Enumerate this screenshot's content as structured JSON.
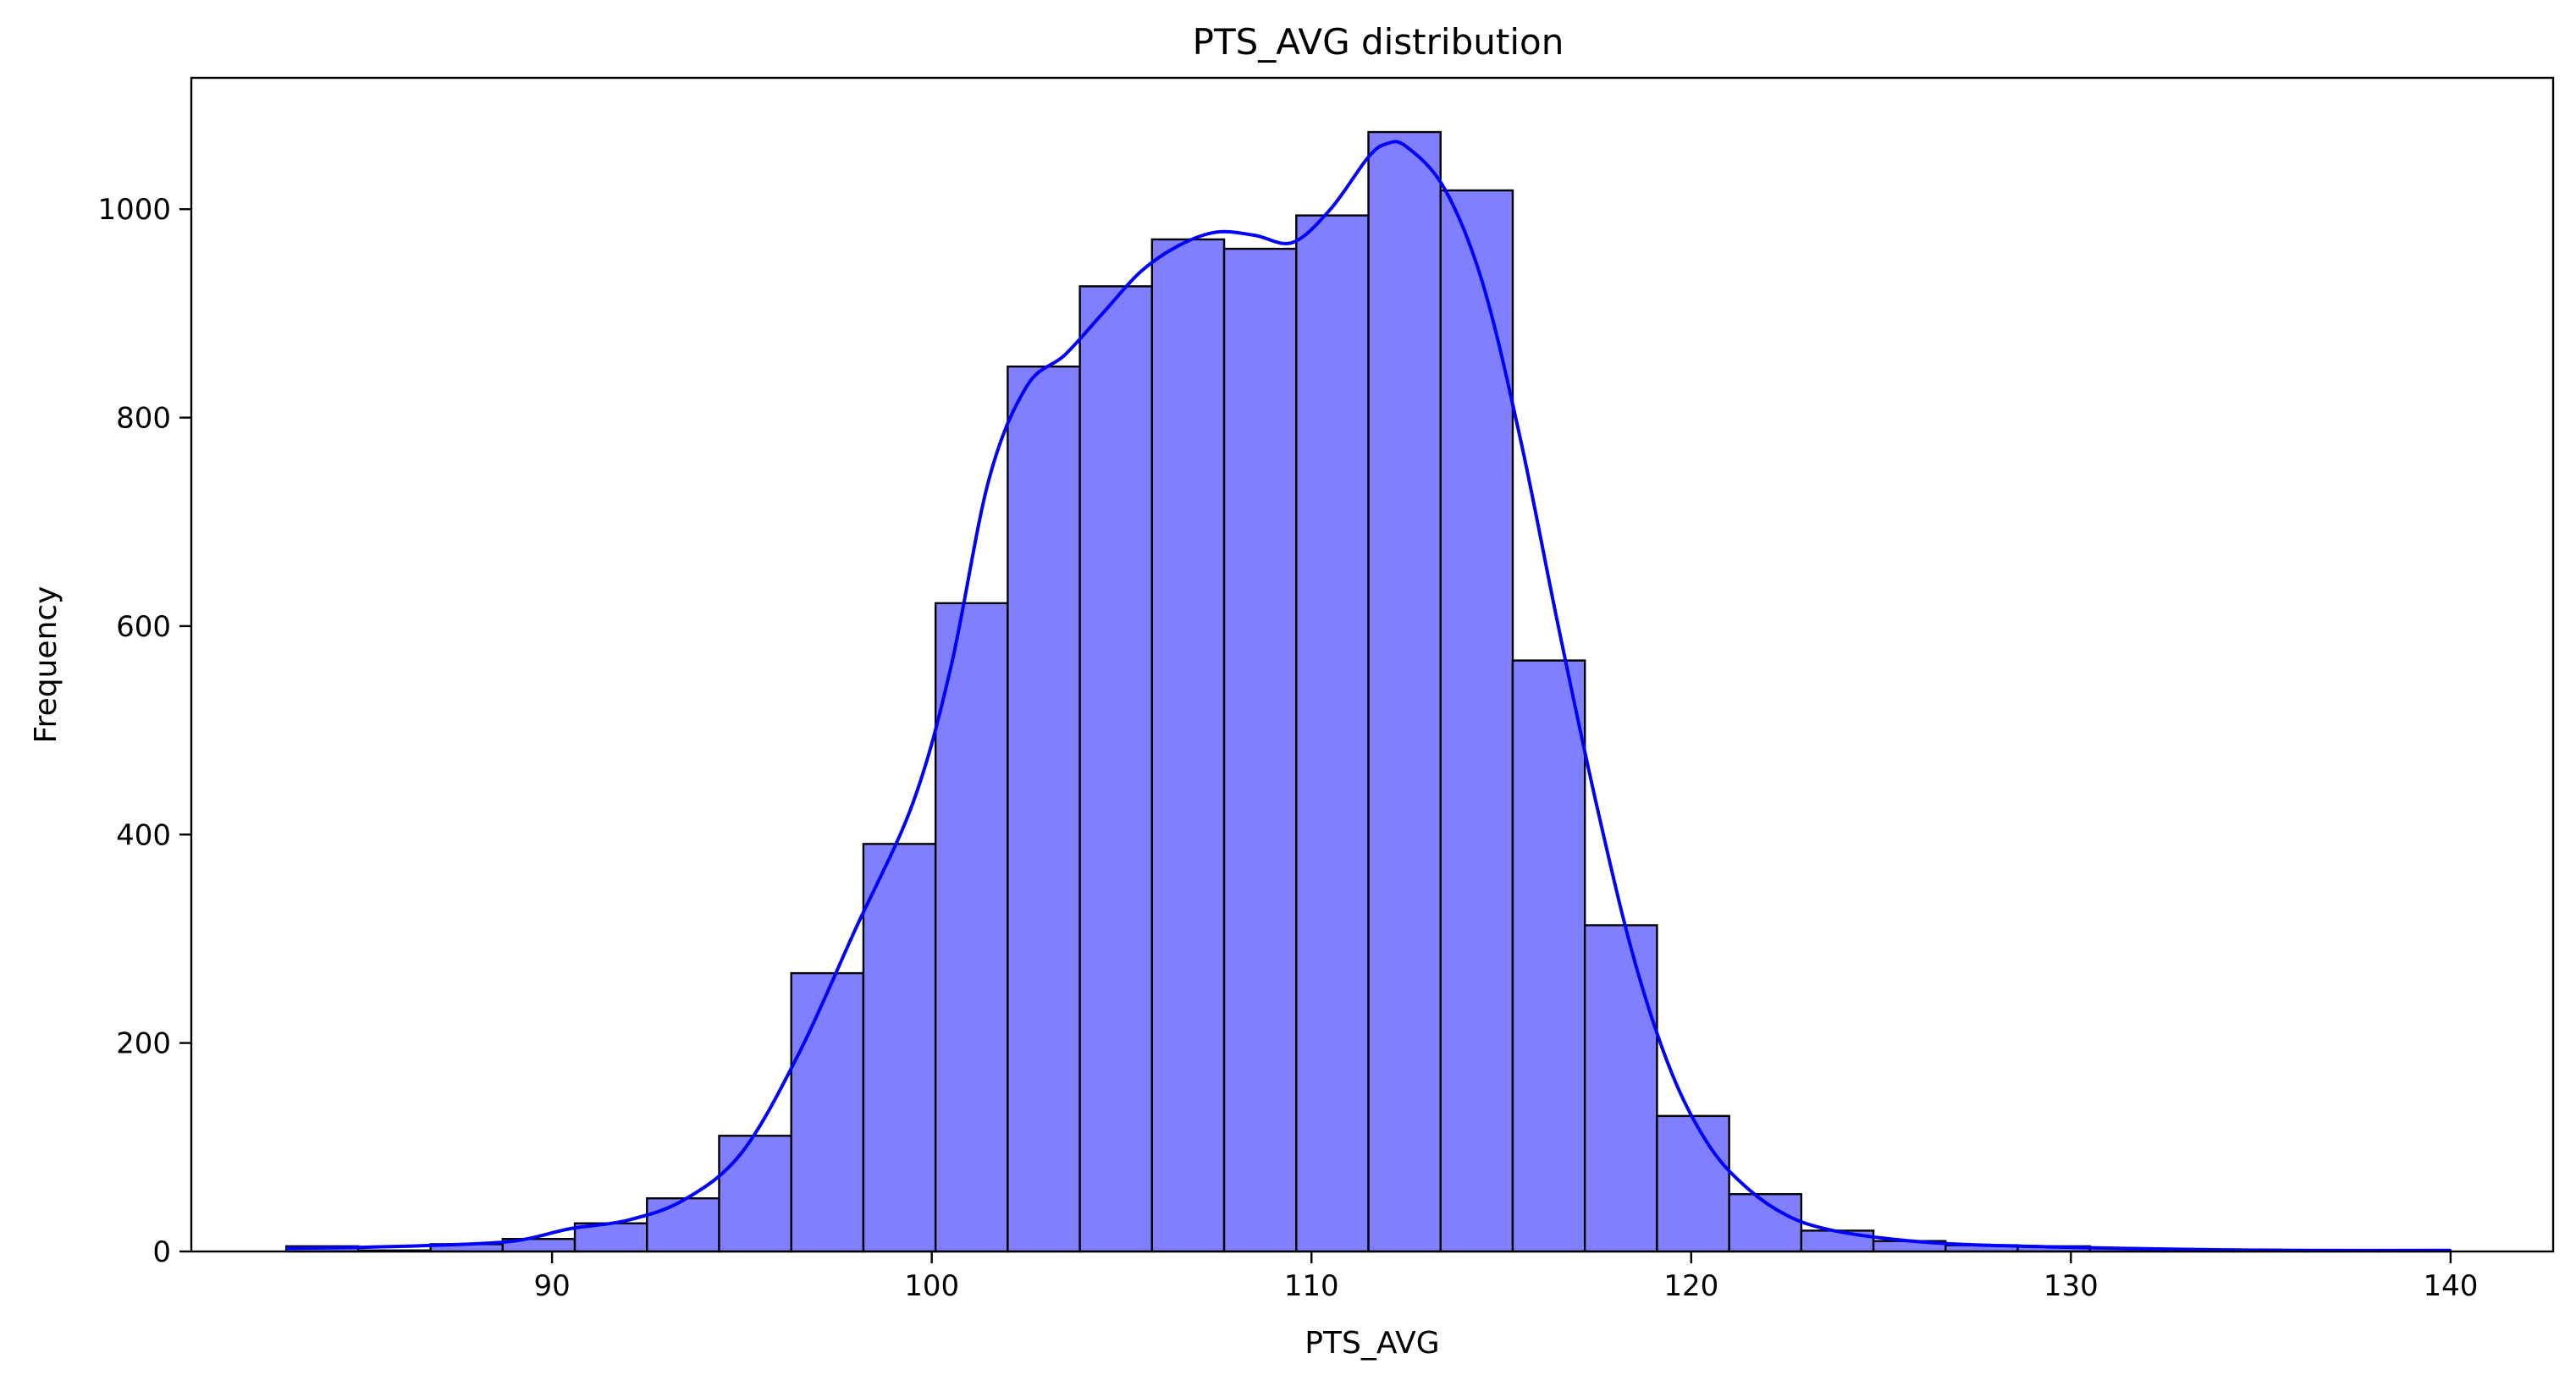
{
  "chart_data": {
    "type": "bar",
    "title": "PTS_AVG distribution",
    "xlabel": "PTS_AVG",
    "ylabel": "Frequency",
    "xlim": [
      80.5,
      142.7
    ],
    "ylim": [
      0,
      1126
    ],
    "xticks": [
      90,
      100,
      110,
      120,
      130,
      140
    ],
    "yticks": [
      0,
      200,
      400,
      800,
      1000
    ],
    "yticks_all": [
      0,
      200,
      400,
      600,
      800,
      1000
    ],
    "grid": false,
    "legend": "none",
    "bins": {
      "edges": [
        83.0,
        84.9,
        86.8,
        88.7,
        90.6,
        92.5,
        94.4,
        96.3,
        98.2,
        100.1,
        102.0,
        103.9,
        105.8,
        107.7,
        109.6,
        111.5,
        113.4,
        115.3,
        117.2,
        119.1,
        121.0,
        122.9,
        124.8,
        126.7,
        128.6,
        130.5,
        132.4,
        134.3,
        136.2,
        138.1,
        140.0
      ],
      "counts": [
        5,
        1,
        7,
        12,
        27,
        51,
        111,
        267,
        391,
        622,
        849,
        926,
        971,
        962,
        994,
        1074,
        1018,
        567,
        313,
        130,
        55,
        20,
        10,
        6,
        5,
        3,
        1,
        1,
        1,
        1
      ]
    },
    "kde": {
      "x": [
        83,
        85,
        87,
        89,
        90.5,
        92,
        93.5,
        95,
        96.5,
        98,
        99.5,
        100.5,
        101.5,
        102.5,
        103.5,
        104.5,
        105.5,
        106.5,
        107.5,
        108.5,
        109.5,
        110.5,
        111.5,
        112,
        112.5,
        113.5,
        114.5,
        115.5,
        116.5,
        117.5,
        118.5,
        119.5,
        120.5,
        121.5,
        122.5,
        123.5,
        125,
        127,
        130,
        133,
        136,
        140
      ],
      "y": [
        3,
        4,
        6,
        10,
        22,
        30,
        50,
        95,
        190,
        310,
        430,
        560,
        740,
        830,
        860,
        900,
        940,
        965,
        978,
        975,
        968,
        1000,
        1050,
        1063,
        1060,
        1020,
        930,
        780,
        600,
        430,
        280,
        170,
        100,
        60,
        35,
        22,
        13,
        7,
        4,
        2,
        1,
        1
      ]
    },
    "colors": {
      "bar_fill": "#8080ff",
      "bar_edge": "#000000",
      "kde_line": "#0000ff"
    }
  }
}
